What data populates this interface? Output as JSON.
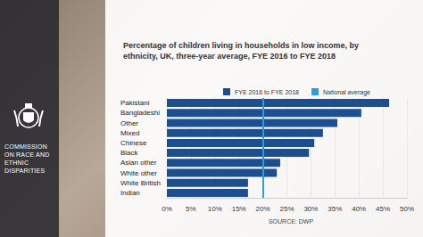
{
  "organisation": "COMMISSION ON RACE AND ETHNIC DISPARITIES",
  "chart_data": {
    "type": "bar",
    "orientation": "horizontal",
    "title": "Percentage of children living in households in low income, by ethnicity, UK, three-year average, FYE 2016 to FYE 2018",
    "categories": [
      "Pakistani",
      "Bangladeshi",
      "Other",
      "Mixed",
      "Chinese",
      "Black",
      "Asian other",
      "White other",
      "White British",
      "Indian"
    ],
    "series": [
      {
        "name": "FYE 2016 to FYE 2018",
        "color": "#1b4f91",
        "values": [
          46.3,
          40.5,
          35.5,
          32.5,
          30.7,
          29.6,
          23.6,
          22.9,
          16.9,
          16.9
        ]
      }
    ],
    "national_average": {
      "name": "National average",
      "value": 20,
      "color": "#2f9be0"
    },
    "xlim": [
      0,
      50
    ],
    "xticks": [
      {
        "value": 0,
        "label": "0%"
      },
      {
        "value": 5,
        "label": "5%"
      },
      {
        "value": 10,
        "label": "10%"
      },
      {
        "value": 15,
        "label": "15%"
      },
      {
        "value": 20,
        "label": "20%"
      },
      {
        "value": 25,
        "label": "25%"
      },
      {
        "value": 30,
        "label": "30%"
      },
      {
        "value": 35,
        "label": "35%"
      },
      {
        "value": 40,
        "label": "40%"
      },
      {
        "value": 45,
        "label": "45%"
      },
      {
        "value": 50,
        "label": "50%"
      }
    ],
    "grid": true,
    "legend": "top",
    "source": "SOURCE: DWP"
  }
}
